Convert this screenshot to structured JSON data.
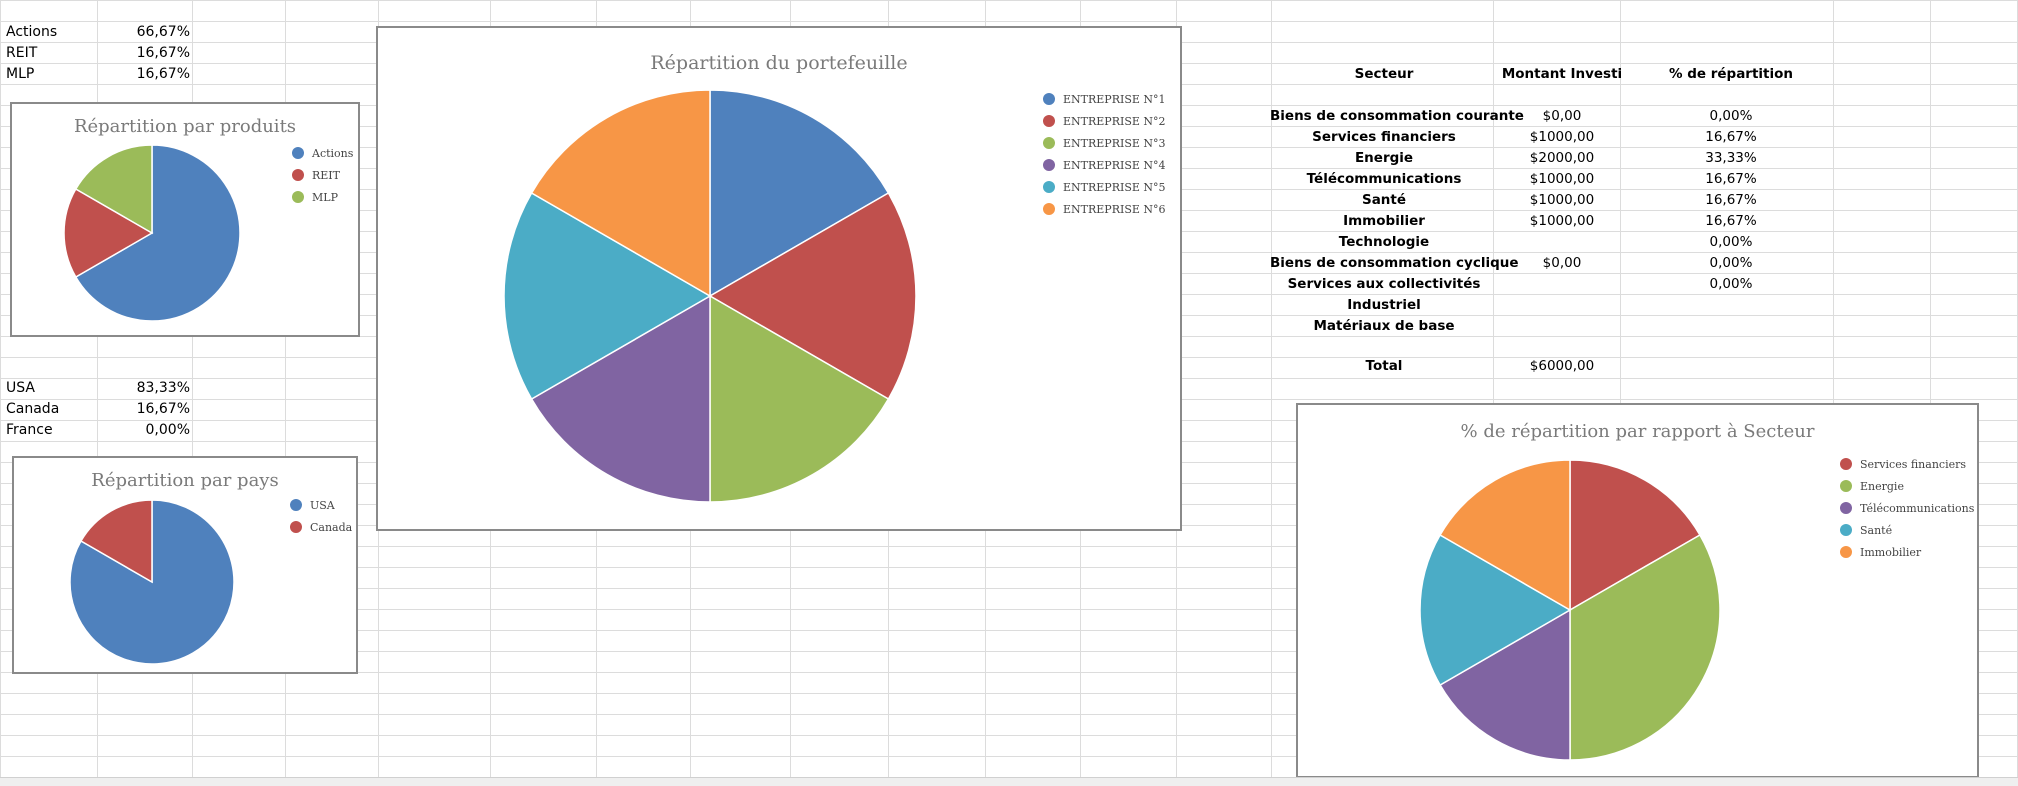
{
  "products": [
    {
      "label": "Actions",
      "value": "66,67%"
    },
    {
      "label": "REIT",
      "value": "16,67%"
    },
    {
      "label": "MLP",
      "value": "16,67%"
    }
  ],
  "countries": [
    {
      "label": "USA",
      "value": "83,33%"
    },
    {
      "label": "Canada",
      "value": "16,67%"
    },
    {
      "label": "France",
      "value": "0,00%"
    }
  ],
  "sector_table": {
    "headers": [
      "Secteur",
      "Montant Investi",
      "% de répartition"
    ],
    "rows": [
      [
        "Biens de consommation courante",
        "$0,00",
        "0,00%"
      ],
      [
        "Services financiers",
        "$1000,00",
        "16,67%"
      ],
      [
        "Energie",
        "$2000,00",
        "33,33%"
      ],
      [
        "Télécommunications",
        "$1000,00",
        "16,67%"
      ],
      [
        "Santé",
        "$1000,00",
        "16,67%"
      ],
      [
        "Immobilier",
        "$1000,00",
        "16,67%"
      ],
      [
        "Technologie",
        "",
        "0,00%"
      ],
      [
        "Biens de consommation cyclique",
        "$0,00",
        "0,00%"
      ],
      [
        "Services aux collectivités",
        "",
        "0,00%"
      ],
      [
        "Industriel",
        "",
        ""
      ],
      [
        "Matériaux de base",
        "",
        ""
      ]
    ],
    "total_label": "Total",
    "total_value": "$6000,00"
  },
  "colors": {
    "blue": "#4f81bd",
    "red": "#c0504d",
    "green": "#9bbb59",
    "purple": "#8064a2",
    "cyan": "#4bacc6",
    "orange": "#f79646"
  },
  "chart_data": [
    {
      "id": "produits",
      "type": "pie",
      "title": "Répartition par produits",
      "labels": [
        "Actions",
        "REIT",
        "MLP"
      ],
      "values": [
        66.67,
        16.67,
        16.67
      ],
      "colors": [
        "#4f81bd",
        "#c0504d",
        "#9bbb59"
      ],
      "legend": "right"
    },
    {
      "id": "pays",
      "type": "pie",
      "title": "Répartition par pays",
      "labels": [
        "USA",
        "Canada"
      ],
      "values": [
        83.33,
        16.67
      ],
      "colors": [
        "#4f81bd",
        "#c0504d"
      ],
      "legend": "right"
    },
    {
      "id": "portefeuille",
      "type": "pie",
      "title": "Répartition du portefeuille",
      "labels": [
        "ENTREPRISE N°1",
        "ENTREPRISE N°2",
        "ENTREPRISE N°3",
        "ENTREPRISE N°4",
        "ENTREPRISE N°5",
        "ENTREPRISE N°6"
      ],
      "values": [
        16.67,
        16.67,
        16.67,
        16.67,
        16.67,
        16.67
      ],
      "colors": [
        "#4f81bd",
        "#c0504d",
        "#9bbb59",
        "#8064a2",
        "#4bacc6",
        "#f79646"
      ],
      "legend": "right"
    },
    {
      "id": "secteur",
      "type": "pie",
      "title": "% de répartition par rapport à Secteur",
      "labels": [
        "Services financiers",
        "Energie",
        "Télécommunications",
        "Santé",
        "Immobilier"
      ],
      "values": [
        16.67,
        33.33,
        16.67,
        16.67,
        16.67
      ],
      "colors": [
        "#c0504d",
        "#9bbb59",
        "#8064a2",
        "#4bacc6",
        "#f79646"
      ],
      "legend": "right"
    }
  ]
}
